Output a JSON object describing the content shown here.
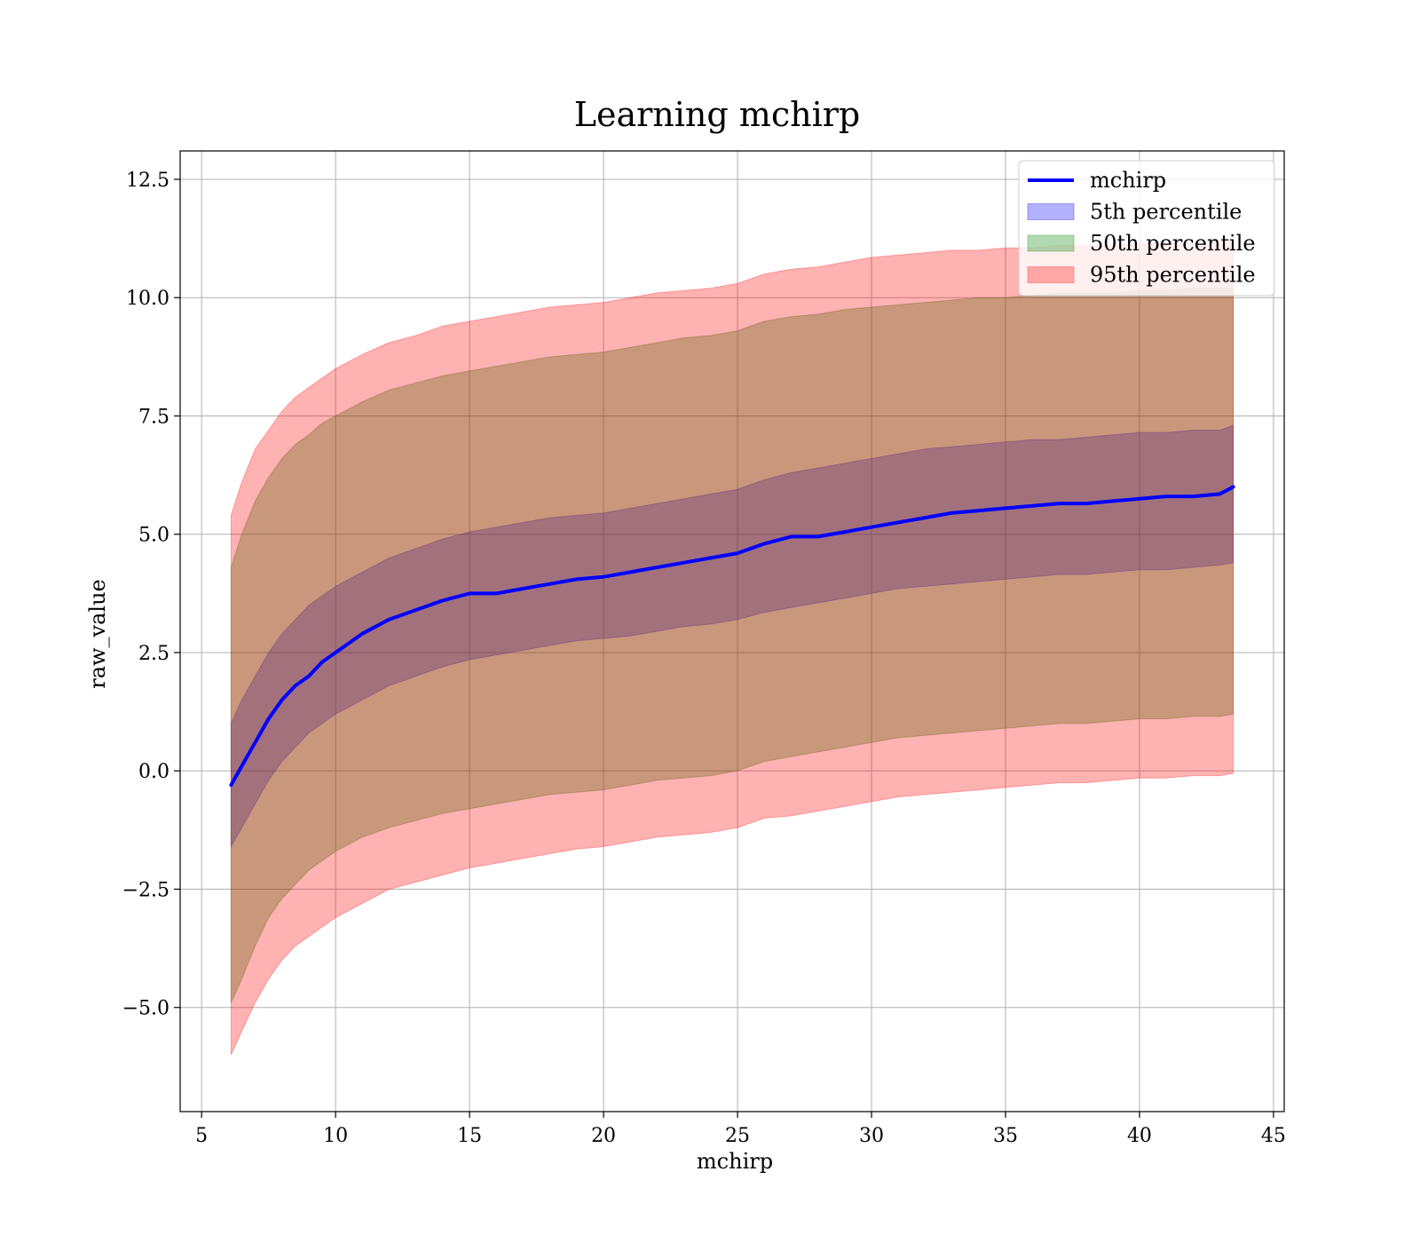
{
  "chart_data": {
    "type": "line",
    "title": "Learning mchirp",
    "xlabel": "mchirp",
    "ylabel": "raw_value",
    "xlim": [
      4.2,
      45.4
    ],
    "ylim": [
      -7.2,
      13.1
    ],
    "xticks": [
      5,
      10,
      15,
      20,
      25,
      30,
      35,
      40,
      45
    ],
    "yticks": [
      -5.0,
      -2.5,
      0.0,
      2.5,
      5.0,
      7.5,
      10.0,
      12.5
    ],
    "xtick_labels": [
      "5",
      "10",
      "15",
      "20",
      "25",
      "30",
      "35",
      "40",
      "45"
    ],
    "ytick_labels": [
      "−5.0",
      "−2.5",
      "0.0",
      "2.5",
      "5.0",
      "7.5",
      "10.0",
      "12.5"
    ],
    "grid": true,
    "legend_position": "top-right",
    "x": [
      6.1,
      6.5,
      7.0,
      7.5,
      8.0,
      8.5,
      9.0,
      9.5,
      10.0,
      11.0,
      12.0,
      13.0,
      14.0,
      15.0,
      16.0,
      17.0,
      18.0,
      19.0,
      20.0,
      21.0,
      22.0,
      23.0,
      24.0,
      25.0,
      26.0,
      27.0,
      28.0,
      29.0,
      30.0,
      31.0,
      32.0,
      33.0,
      34.0,
      35.0,
      36.0,
      37.0,
      38.0,
      39.0,
      40.0,
      41.0,
      42.0,
      43.0,
      43.5
    ],
    "series": [
      {
        "name": "mchirp",
        "kind": "line",
        "color": "#0000ff",
        "values": [
          -0.3,
          0.1,
          0.6,
          1.1,
          1.5,
          1.8,
          2.0,
          2.3,
          2.5,
          2.9,
          3.2,
          3.4,
          3.6,
          3.75,
          3.75,
          3.85,
          3.95,
          4.05,
          4.1,
          4.2,
          4.3,
          4.4,
          4.5,
          4.6,
          4.8,
          4.95,
          4.95,
          5.05,
          5.15,
          5.25,
          5.35,
          5.45,
          5.5,
          5.55,
          5.6,
          5.65,
          5.65,
          5.7,
          5.75,
          5.8,
          5.8,
          5.85,
          6.0
        ]
      },
      {
        "name": "5th percentile",
        "kind": "band",
        "color": "#0000ff",
        "lower": [
          -1.6,
          -1.2,
          -0.7,
          -0.2,
          0.2,
          0.5,
          0.8,
          1.0,
          1.2,
          1.5,
          1.8,
          2.0,
          2.2,
          2.35,
          2.45,
          2.55,
          2.65,
          2.75,
          2.8,
          2.85,
          2.95,
          3.05,
          3.1,
          3.2,
          3.35,
          3.45,
          3.55,
          3.65,
          3.75,
          3.85,
          3.9,
          3.95,
          4.0,
          4.05,
          4.1,
          4.15,
          4.15,
          4.2,
          4.25,
          4.25,
          4.3,
          4.35,
          4.4
        ],
        "upper": [
          1.0,
          1.5,
          2.0,
          2.5,
          2.9,
          3.2,
          3.5,
          3.7,
          3.9,
          4.2,
          4.5,
          4.7,
          4.9,
          5.05,
          5.15,
          5.25,
          5.35,
          5.4,
          5.45,
          5.55,
          5.65,
          5.75,
          5.85,
          5.95,
          6.15,
          6.3,
          6.4,
          6.5,
          6.6,
          6.7,
          6.8,
          6.85,
          6.9,
          6.95,
          7.0,
          7.0,
          7.05,
          7.1,
          7.15,
          7.15,
          7.2,
          7.2,
          7.3
        ]
      },
      {
        "name": "50th percentile",
        "kind": "band",
        "color": "#008000",
        "lower": [
          -4.9,
          -4.4,
          -3.7,
          -3.1,
          -2.7,
          -2.4,
          -2.1,
          -1.9,
          -1.7,
          -1.4,
          -1.2,
          -1.05,
          -0.9,
          -0.8,
          -0.7,
          -0.6,
          -0.5,
          -0.45,
          -0.4,
          -0.3,
          -0.2,
          -0.15,
          -0.1,
          0.0,
          0.2,
          0.3,
          0.4,
          0.5,
          0.6,
          0.7,
          0.75,
          0.8,
          0.85,
          0.9,
          0.95,
          1.0,
          1.0,
          1.05,
          1.1,
          1.1,
          1.15,
          1.15,
          1.2
        ],
        "upper": [
          4.3,
          5.0,
          5.7,
          6.2,
          6.6,
          6.9,
          7.1,
          7.35,
          7.5,
          7.8,
          8.05,
          8.2,
          8.35,
          8.45,
          8.55,
          8.65,
          8.75,
          8.8,
          8.85,
          8.95,
          9.05,
          9.15,
          9.2,
          9.3,
          9.5,
          9.6,
          9.65,
          9.75,
          9.8,
          9.85,
          9.9,
          9.95,
          10.0,
          10.0,
          10.05,
          10.1,
          10.1,
          10.1,
          10.15,
          10.15,
          10.2,
          10.2,
          10.2
        ]
      },
      {
        "name": "95th percentile",
        "kind": "band",
        "color": "#ff0000",
        "lower": [
          -6.0,
          -5.5,
          -4.9,
          -4.4,
          -4.0,
          -3.7,
          -3.5,
          -3.3,
          -3.1,
          -2.8,
          -2.5,
          -2.35,
          -2.2,
          -2.05,
          -1.95,
          -1.85,
          -1.75,
          -1.65,
          -1.6,
          -1.5,
          -1.4,
          -1.35,
          -1.3,
          -1.2,
          -1.0,
          -0.95,
          -0.85,
          -0.75,
          -0.65,
          -0.55,
          -0.5,
          -0.45,
          -0.4,
          -0.35,
          -0.3,
          -0.25,
          -0.25,
          -0.2,
          -0.15,
          -0.15,
          -0.1,
          -0.1,
          -0.05
        ],
        "upper": [
          5.4,
          6.1,
          6.8,
          7.2,
          7.6,
          7.9,
          8.1,
          8.3,
          8.5,
          8.8,
          9.05,
          9.2,
          9.4,
          9.5,
          9.6,
          9.7,
          9.8,
          9.85,
          9.9,
          10.0,
          10.1,
          10.15,
          10.2,
          10.3,
          10.5,
          10.6,
          10.65,
          10.75,
          10.85,
          10.9,
          10.95,
          11.0,
          11.0,
          11.05,
          11.05,
          11.1,
          11.1,
          11.1,
          11.15,
          11.15,
          11.15,
          11.2,
          11.2
        ]
      }
    ]
  }
}
